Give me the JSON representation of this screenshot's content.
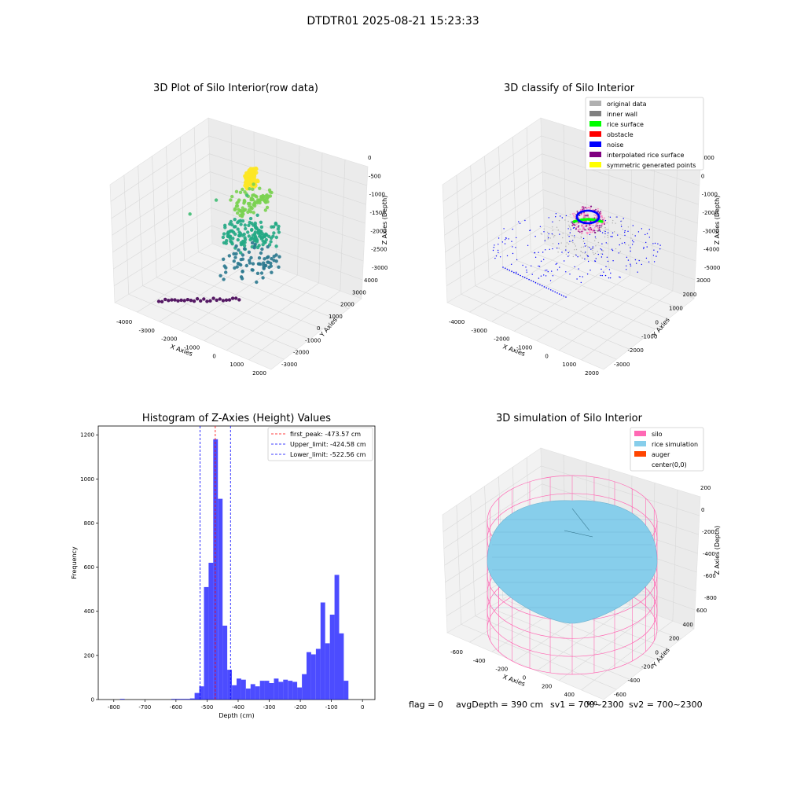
{
  "figure": {
    "suptitle": "DTDTR01 2025-08-21 15:23:33",
    "footer": {
      "flag": "flag = 0",
      "avg_depth": "avgDepth = 390 cm",
      "sv1": "sv1 = 700~2300",
      "sv2": "sv2 = 700~2300"
    }
  },
  "chart_data": [
    {
      "type": "scatter",
      "projection": "3d",
      "title": "3D Plot of Silo Interior(row data)",
      "xlabel": "X Axies",
      "ylabel": "Y Axies",
      "zlabel": "Z Axies (Depth)",
      "xticks": [
        "-4000",
        "-3000",
        "-2000",
        "-1000",
        "0",
        "1000",
        "2000"
      ],
      "yticks": [
        "-3000",
        "-2000",
        "-1000",
        "0",
        "1000",
        "2000",
        "3000",
        "4000"
      ],
      "zticks": [
        "0",
        "-500",
        "-1000",
        "-1500",
        "-2000",
        "-2500",
        "-3000"
      ],
      "xlim": [
        -4300,
        2300
      ],
      "ylim": [
        -3300,
        4300
      ],
      "zlim": [
        -3200,
        0
      ],
      "colormap": "viridis",
      "groups": [
        {
          "name": "",
          "center": [
            0,
            0,
            -250
          ],
          "radius": 300,
          "color": "#fde725",
          "points": 80
        },
        {
          "name": "",
          "center": [
            0,
            0,
            -900
          ],
          "radius": 900,
          "color": "#7ad151",
          "points": 90
        },
        {
          "name": "",
          "center": [
            0,
            0,
            -1800
          ],
          "radius": 1200,
          "color": "#22a884",
          "points": 140
        },
        {
          "name": "",
          "center": [
            0,
            0,
            -2600
          ],
          "radius": 1300,
          "color": "#2a788e",
          "points": 70
        },
        {
          "name": "",
          "line_from": [
            -2800,
            -2800,
            -3100
          ],
          "line_to": [
            400,
            -1600,
            -3100
          ],
          "color": "#440154",
          "points": 26
        }
      ],
      "grid": true
    },
    {
      "type": "scatter",
      "projection": "3d",
      "title": "3D classify of Silo Interior",
      "xlabel": "X Axies",
      "ylabel": "Y Axies",
      "zlabel": "Z Axies (Depth)",
      "xticks": [
        "-4000",
        "-3000",
        "-2000",
        "-1000",
        "0",
        "1000",
        "2000"
      ],
      "yticks": [
        "-3000",
        "-2000",
        "-1000",
        "0",
        "1000",
        "2000",
        "3000"
      ],
      "zticks": [
        "1000",
        "0",
        "-1000",
        "-2000",
        "-3000",
        "-4000",
        "-5000"
      ],
      "xlim": [
        -4300,
        2600
      ],
      "ylim": [
        -3300,
        3300
      ],
      "zlim": [
        -5200,
        1000
      ],
      "legend": [
        {
          "label": "original data",
          "color": "#b0b0b0"
        },
        {
          "label": "inner wall",
          "color": "#808080"
        },
        {
          "label": "rice surface",
          "color": "#00ff00"
        },
        {
          "label": "obstacle",
          "color": "#ff0000"
        },
        {
          "label": "noise",
          "color": "#0000ff"
        },
        {
          "label": "interpolated rice surface",
          "color": "#800080"
        },
        {
          "label": "symmetric generated points",
          "color": "#ffff00"
        }
      ],
      "legend_loc": "upper right",
      "grid": true
    },
    {
      "type": "bar",
      "title": "Histogram of Z-Axies (Height) Values",
      "xlabel": "Depth (cm)",
      "ylabel": "Frequency",
      "xticks": [
        -800,
        -700,
        -600,
        -500,
        -400,
        -300,
        -200,
        -100,
        0
      ],
      "yticks": [
        0,
        200,
        400,
        600,
        800,
        1000,
        1200
      ],
      "xlim": [
        -850,
        40
      ],
      "ylim": [
        0,
        1240
      ],
      "bar_color": "#0000ff",
      "bin_width": 15,
      "bins": [
        {
          "x": -780,
          "count": 3
        },
        {
          "x": -615,
          "count": 3
        },
        {
          "x": -600,
          "count": 3
        },
        {
          "x": -585,
          "count": 3
        },
        {
          "x": -570,
          "count": 3
        },
        {
          "x": -555,
          "count": 5
        },
        {
          "x": -540,
          "count": 30
        },
        {
          "x": -525,
          "count": 60
        },
        {
          "x": -510,
          "count": 510
        },
        {
          "x": -495,
          "count": 620
        },
        {
          "x": -480,
          "count": 1180
        },
        {
          "x": -465,
          "count": 910
        },
        {
          "x": -450,
          "count": 335
        },
        {
          "x": -435,
          "count": 135
        },
        {
          "x": -420,
          "count": 65
        },
        {
          "x": -405,
          "count": 95
        },
        {
          "x": -390,
          "count": 90
        },
        {
          "x": -375,
          "count": 50
        },
        {
          "x": -360,
          "count": 70
        },
        {
          "x": -345,
          "count": 60
        },
        {
          "x": -330,
          "count": 85
        },
        {
          "x": -315,
          "count": 85
        },
        {
          "x": -300,
          "count": 75
        },
        {
          "x": -285,
          "count": 95
        },
        {
          "x": -270,
          "count": 80
        },
        {
          "x": -255,
          "count": 90
        },
        {
          "x": -240,
          "count": 85
        },
        {
          "x": -225,
          "count": 80
        },
        {
          "x": -210,
          "count": 55
        },
        {
          "x": -195,
          "count": 115
        },
        {
          "x": -180,
          "count": 215
        },
        {
          "x": -165,
          "count": 205
        },
        {
          "x": -150,
          "count": 230
        },
        {
          "x": -135,
          "count": 440
        },
        {
          "x": -120,
          "count": 255
        },
        {
          "x": -105,
          "count": 385
        },
        {
          "x": -90,
          "count": 565
        },
        {
          "x": -75,
          "count": 300
        },
        {
          "x": -60,
          "count": 85
        }
      ],
      "vlines": [
        {
          "label": "first_peak: -473.57 cm",
          "x": -473.57,
          "color": "#ff0000"
        },
        {
          "label": "Upper_limit: -424.58 cm",
          "x": -424.58,
          "color": "#0000ff"
        },
        {
          "label": "Lower_limit: -522.56 cm",
          "x": -522.56,
          "color": "#0000ff"
        }
      ],
      "legend_loc": "upper right"
    },
    {
      "type": "surface",
      "projection": "3d",
      "title": "3D simulation of Silo Interior",
      "xlabel": "X Axies",
      "ylabel": "Y Axies",
      "zlabel": "Z Axies (Depth)",
      "xticks": [
        "-600",
        "-400",
        "-200",
        "0",
        "200",
        "400",
        "600"
      ],
      "yticks": [
        "-600",
        "-400",
        "-200",
        "0",
        "200",
        "400",
        "600"
      ],
      "zticks": [
        "200",
        "0",
        "-200",
        "-400",
        "-600",
        "-800"
      ],
      "xlim": [
        -650,
        650
      ],
      "ylim": [
        -650,
        650
      ],
      "zlim": [
        -900,
        300
      ],
      "silo_radius": 600,
      "rice_peak_depth": 0,
      "rice_edge_depth": -700,
      "legend": [
        {
          "label": "silo",
          "color": "#ff69b4"
        },
        {
          "label": "rice simulation",
          "color": "#87ceeb"
        },
        {
          "label": "auger",
          "color": "#ff4500"
        },
        {
          "label": "center(0,0)",
          "color": "#ffffff"
        }
      ],
      "legend_loc": "upper right",
      "grid": true
    }
  ]
}
